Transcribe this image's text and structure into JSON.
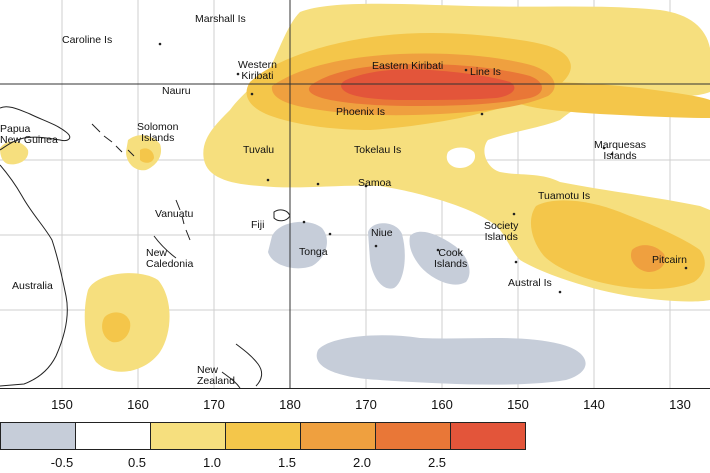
{
  "palette": {
    "neg": "#c6cdd9",
    "none": "#ffffff",
    "c05": "#f6df7e",
    "c10": "#f4c64a",
    "c15": "#efa03f",
    "c20": "#e97737",
    "c25": "#e3553a",
    "grid": "#cfcfcf",
    "land": "#222222"
  },
  "labels": {
    "marshall": "Marshall Is",
    "caroline": "Caroline Is",
    "western_kiribati": "Western\nKiribati",
    "eastern_kiribati": "Eastern Kiribati",
    "line": "Line Is",
    "nauru": "Nauru",
    "png": "Papua\nNew Guinea",
    "solomon": "Solomon\nIslands",
    "phoenix": "Phoenix Is",
    "tuvalu": "Tuvalu",
    "tokelau": "Tokelau Is",
    "marquesas": "Marquesas\nIslands",
    "samoa": "Samoa",
    "vanuatu": "Vanuatu",
    "fiji": "Fiji",
    "tuamotu": "Tuamotu Is",
    "society": "Society\nIslands",
    "niue": "Niue",
    "tonga": "Tonga",
    "cook": "Cook\nIslands",
    "new_caledonia": "New\nCaledonia",
    "pitcairn": "Pitcairn",
    "australia": "Australia",
    "austral": "Austral Is",
    "nz": "New\nZealand"
  },
  "axis_ticks": [
    "150",
    "160",
    "170",
    "180",
    "170",
    "160",
    "150",
    "140",
    "130"
  ],
  "legend_ticks": [
    "-0.5",
    "0.5",
    "1.0",
    "1.5",
    "2.0",
    "2.5"
  ]
}
